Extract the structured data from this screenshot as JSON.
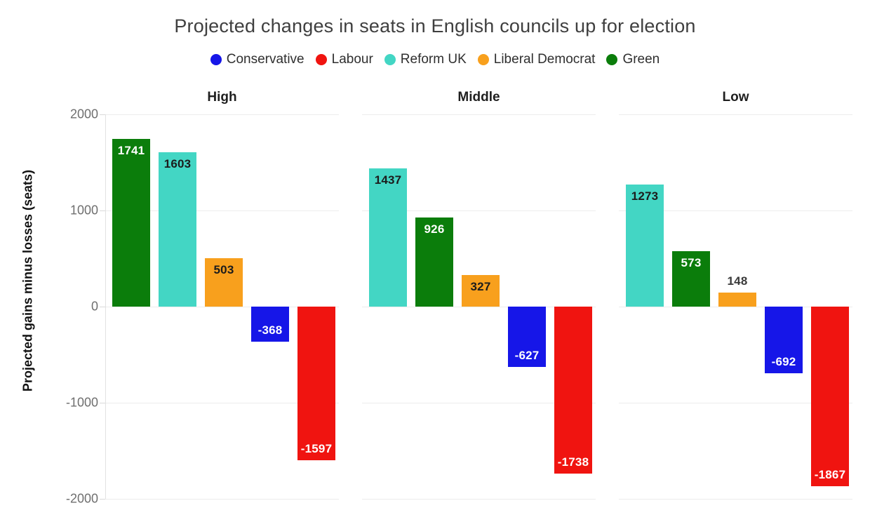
{
  "title": "Projected changes in seats in English councils up for election",
  "legend": {
    "items": [
      {
        "label": "Conservative",
        "color": "#1616e8"
      },
      {
        "label": "Labour",
        "color": "#f01410"
      },
      {
        "label": "Reform UK",
        "color": "#43d6c4"
      },
      {
        "label": "Liberal Democrat",
        "color": "#f8a01d"
      },
      {
        "label": "Green",
        "color": "#0b7d0b"
      }
    ]
  },
  "y_axis": {
    "label": "Projected gains minus losses (seats)",
    "ticks": [
      2000,
      1000,
      0,
      -1000,
      -2000
    ]
  },
  "chart_data": {
    "type": "bar",
    "title": "Projected changes in seats in English councils up for election",
    "xlabel": "",
    "ylabel": "Projected gains minus losses (seats)",
    "ylim": [
      -2000,
      2000
    ],
    "grid": true,
    "legend_position": "top",
    "facets": [
      {
        "name": "High",
        "bars": [
          {
            "party": "Green",
            "value": 1741,
            "color": "#0b7d0b",
            "label_color": "#ffffff",
            "label_pos": "inside-top"
          },
          {
            "party": "Reform UK",
            "value": 1603,
            "color": "#43d6c4",
            "label_color": "#1c1c1c",
            "label_pos": "inside-top"
          },
          {
            "party": "Liberal Democrat",
            "value": 503,
            "color": "#f8a01d",
            "label_color": "#1c1c1c",
            "label_pos": "inside-top"
          },
          {
            "party": "Conservative",
            "value": -368,
            "color": "#1616e8",
            "label_color": "#ffffff",
            "label_pos": "inside-bottom"
          },
          {
            "party": "Labour",
            "value": -1597,
            "color": "#f01410",
            "label_color": "#ffffff",
            "label_pos": "inside-bottom"
          }
        ]
      },
      {
        "name": "Middle",
        "bars": [
          {
            "party": "Reform UK",
            "value": 1437,
            "color": "#43d6c4",
            "label_color": "#1c1c1c",
            "label_pos": "inside-top"
          },
          {
            "party": "Green",
            "value": 926,
            "color": "#0b7d0b",
            "label_color": "#ffffff",
            "label_pos": "inside-top"
          },
          {
            "party": "Liberal Democrat",
            "value": 327,
            "color": "#f8a01d",
            "label_color": "#1c1c1c",
            "label_pos": "inside-top"
          },
          {
            "party": "Conservative",
            "value": -627,
            "color": "#1616e8",
            "label_color": "#ffffff",
            "label_pos": "inside-bottom"
          },
          {
            "party": "Labour",
            "value": -1738,
            "color": "#f01410",
            "label_color": "#ffffff",
            "label_pos": "inside-bottom"
          }
        ]
      },
      {
        "name": "Low",
        "bars": [
          {
            "party": "Reform UK",
            "value": 1273,
            "color": "#43d6c4",
            "label_color": "#1c1c1c",
            "label_pos": "inside-top"
          },
          {
            "party": "Green",
            "value": 573,
            "color": "#0b7d0b",
            "label_color": "#ffffff",
            "label_pos": "inside-top"
          },
          {
            "party": "Liberal Democrat",
            "value": 148,
            "color": "#f8a01d",
            "label_color": "#3a3a3a",
            "label_pos": "above"
          },
          {
            "party": "Conservative",
            "value": -692,
            "color": "#1616e8",
            "label_color": "#ffffff",
            "label_pos": "inside-bottom"
          },
          {
            "party": "Labour",
            "value": -1867,
            "color": "#f01410",
            "label_color": "#ffffff",
            "label_pos": "inside-bottom"
          }
        ]
      }
    ]
  }
}
